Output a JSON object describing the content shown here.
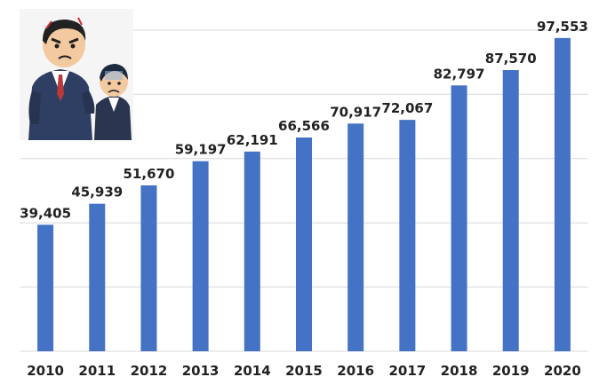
{
  "chart_data": {
    "type": "bar",
    "categories": [
      "2010",
      "2011",
      "2012",
      "2013",
      "2014",
      "2015",
      "2016",
      "2017",
      "2018",
      "2019",
      "2020"
    ],
    "series": [
      {
        "values": [
          39405,
          45939,
          51670,
          59197,
          62191,
          66566,
          70917,
          72067,
          82797,
          87570,
          97553
        ],
        "labels": [
          "39,405",
          "45,939",
          "51,670",
          "59,197",
          "62,191",
          "66,566",
          "70,917",
          "72,067",
          "82,797",
          "87,570",
          "97,553"
        ]
      }
    ],
    "ylim": [
      0,
      100000
    ],
    "grid": true,
    "legend": "none",
    "bar_color": "#4472c4",
    "grid_color": "#d9d9d9"
  },
  "illustration": {
    "icon": "scolding-boss-and-employee-illustration"
  }
}
